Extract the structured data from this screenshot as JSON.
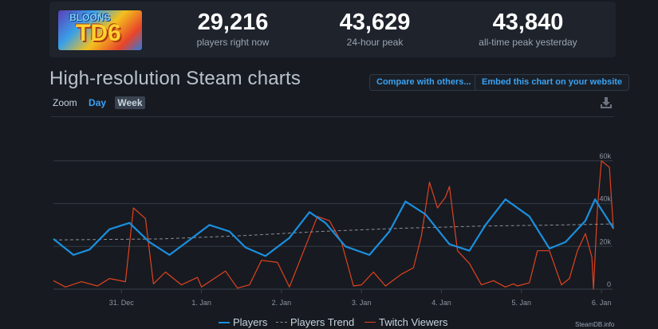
{
  "header": {
    "game_logo": {
      "line1": "BLOONS",
      "line2": "TD6",
      "alt": "Bloons TD 6"
    },
    "stats": [
      {
        "value": "29,216",
        "label": "players right now"
      },
      {
        "value": "43,629",
        "label": "24-hour peak"
      },
      {
        "value": "43,840",
        "label": "all-time peak yesterday"
      }
    ]
  },
  "section": {
    "title": "High-resolution Steam charts",
    "buttons": {
      "compare": "Compare with others...",
      "embed": "Embed this chart on your website"
    },
    "zoom": {
      "label": "Zoom",
      "options": [
        "Day",
        "Week"
      ],
      "active": "Week",
      "highlight": "Day"
    },
    "download_icon": "download-icon"
  },
  "colors": {
    "players": "#1b8fde",
    "trend": "#8a8f96",
    "twitch": "#e0431f",
    "accent": "#3aa2f2",
    "background": "#171a21",
    "panel": "#1e232c"
  },
  "legend": [
    {
      "name": "Players",
      "style": "solid",
      "color": "#1b8fde"
    },
    {
      "name": "Players Trend",
      "style": "dashed",
      "color": "#8a8f96"
    },
    {
      "name": "Twitch Viewers",
      "style": "solid",
      "color": "#e0431f"
    }
  ],
  "credit": "SteamDB.info",
  "chart_data": {
    "type": "line",
    "title": "High-resolution Steam charts",
    "xlabel": "",
    "ylabel": "",
    "x_ticks": [
      "31. Dec",
      "1. Jan",
      "2. Jan",
      "3. Jan",
      "4. Jan",
      "5. Jan",
      "6. Jan"
    ],
    "y_ticks": [
      "0",
      "20k",
      "40k",
      "60k"
    ],
    "ylim": [
      0,
      60000
    ],
    "grid": true,
    "legend_position": "bottom",
    "x_unit": "days since 30 Dec 00:00",
    "series": [
      {
        "name": "Players",
        "color": "#1b8fde",
        "x": [
          0.15,
          0.4,
          0.6,
          0.85,
          1.1,
          1.35,
          1.6,
          1.85,
          2.1,
          2.35,
          2.55,
          2.8,
          3.1,
          3.35,
          3.55,
          3.8,
          4.1,
          4.35,
          4.55,
          4.8,
          5.1,
          5.35,
          5.55,
          5.8,
          6.1,
          6.35,
          6.55,
          6.8,
          6.92,
          6.97,
          7.15
        ],
        "values": [
          23500,
          16000,
          18500,
          28000,
          31000,
          22000,
          16000,
          23000,
          30000,
          27000,
          19500,
          15500,
          24000,
          36000,
          31000,
          20000,
          16000,
          27000,
          41000,
          35000,
          21000,
          18000,
          30000,
          42000,
          34000,
          19000,
          22000,
          32000,
          42000,
          39000,
          28500
        ]
      },
      {
        "name": "Players Trend",
        "color": "#8a8f96",
        "x": [
          0.15,
          1.5,
          2.5,
          3.5,
          4.5,
          5.5,
          6.5,
          7.15
        ],
        "values": [
          23000,
          23500,
          25000,
          27000,
          28500,
          29500,
          30000,
          30500
        ]
      },
      {
        "name": "Twitch Viewers",
        "color": "#e0431f",
        "x": [
          0.15,
          0.3,
          0.5,
          0.7,
          0.85,
          1.05,
          1.15,
          1.3,
          1.4,
          1.55,
          1.75,
          1.95,
          2.0,
          2.1,
          2.3,
          2.45,
          2.6,
          2.75,
          2.95,
          3.1,
          3.3,
          3.45,
          3.6,
          3.75,
          3.9,
          4.0,
          4.1,
          4.15,
          4.3,
          4.5,
          4.65,
          4.75,
          4.85,
          4.95,
          5.05,
          5.1,
          5.2,
          5.35,
          5.5,
          5.65,
          5.8,
          5.9,
          5.95,
          6.1,
          6.2,
          6.35,
          6.5,
          6.6,
          6.7,
          6.8,
          6.88,
          6.9,
          6.95,
          7.0,
          7.1,
          7.15
        ],
        "values": [
          4000,
          1000,
          3500,
          1500,
          5000,
          3500,
          38000,
          33000,
          2500,
          8000,
          2000,
          5500,
          1000,
          3500,
          8500,
          500,
          2000,
          13500,
          12500,
          1000,
          20000,
          34000,
          32000,
          22000,
          1500,
          2000,
          6000,
          8000,
          1500,
          7000,
          10000,
          25000,
          50000,
          38000,
          43000,
          48000,
          18000,
          12000,
          2000,
          4000,
          1000,
          2500,
          1500,
          3000,
          18000,
          18000,
          2000,
          5000,
          18000,
          26000,
          15000,
          0,
          38000,
          60000,
          57000,
          28000
        ]
      }
    ]
  }
}
